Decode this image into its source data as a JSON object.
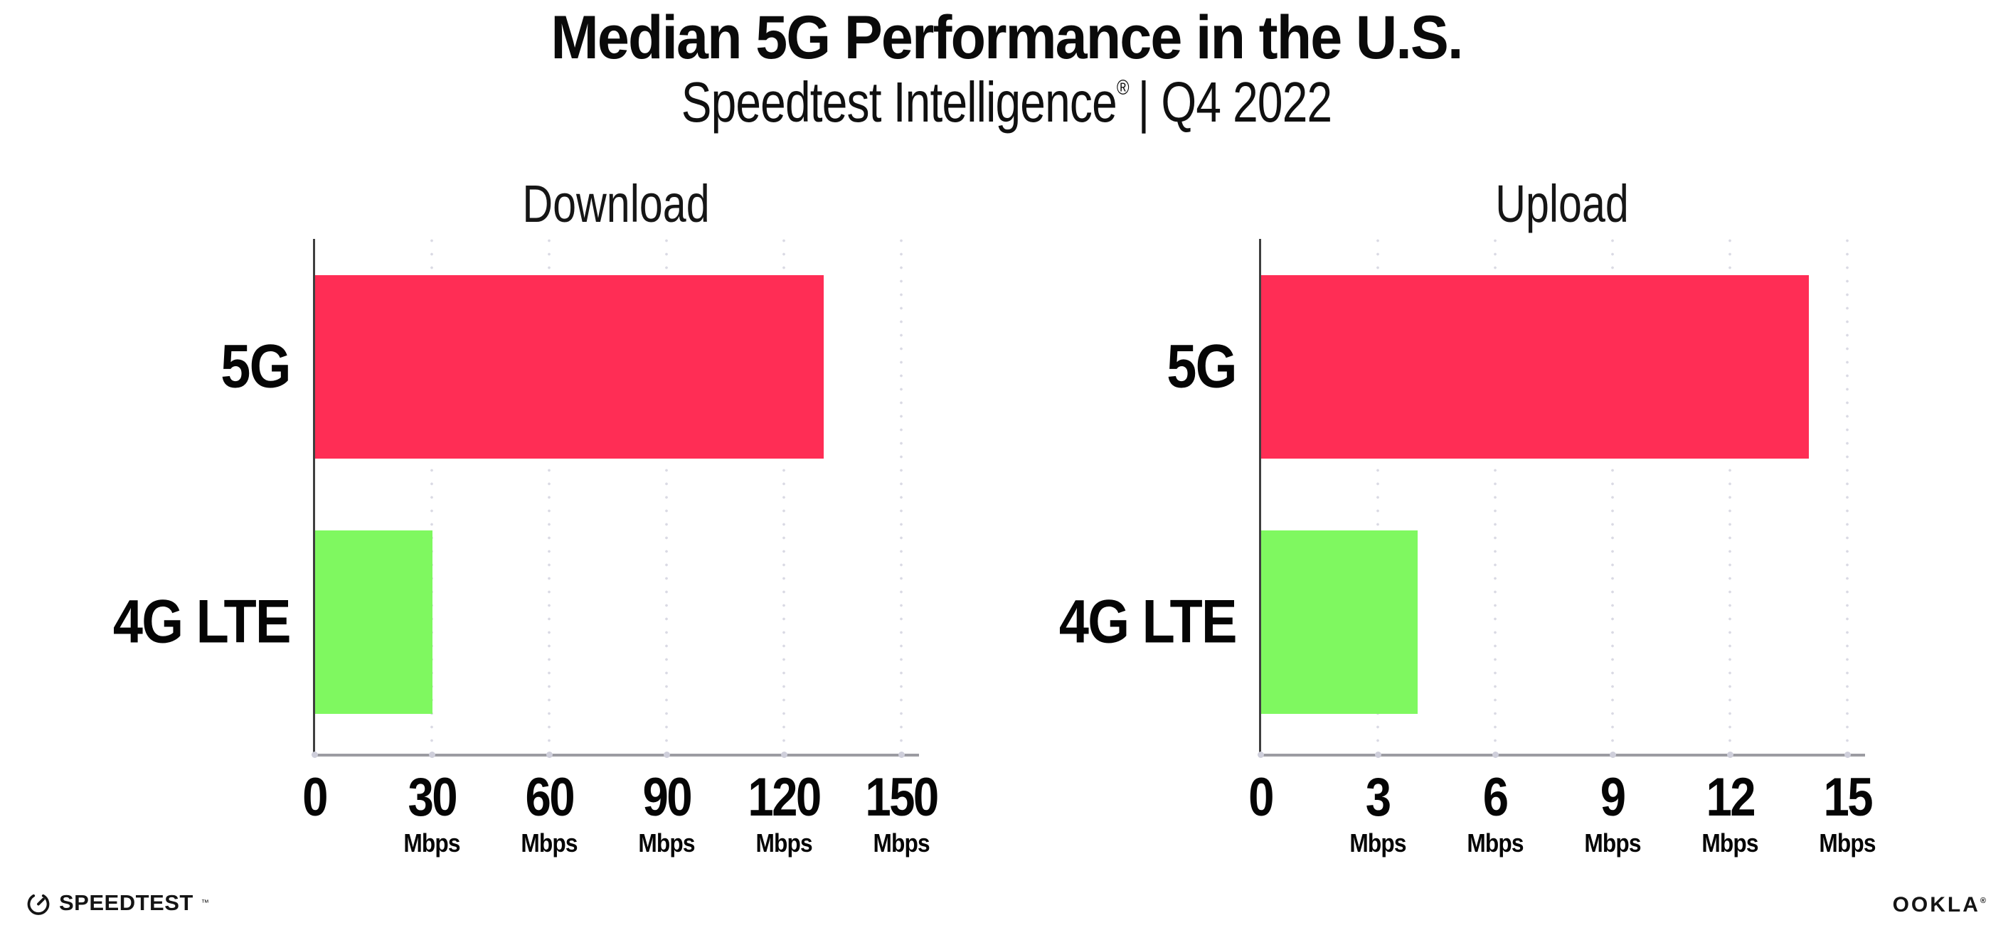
{
  "header": {
    "title": "Median 5G Performance in the U.S.",
    "subtitle_brand": "Speedtest Intelligence",
    "subtitle_reg": "®",
    "subtitle_rest": "| Q4 2022"
  },
  "colors": {
    "bar_5g": "#FF2D55",
    "bar_4g_lte": "#7FF860",
    "gridline": "#DADAE4",
    "x_axis_line": "#9C9CA2",
    "y_axis_line": "#3F3F3F",
    "text": "#0B0B0B"
  },
  "chart_data": [
    {
      "type": "bar",
      "orientation": "horizontal",
      "title": "Download",
      "categories": [
        "5G",
        "4G LTE"
      ],
      "values": [
        130,
        30
      ],
      "unit": "Mbps",
      "xlim": [
        0,
        150
      ],
      "ticks": [
        0,
        30,
        60,
        90,
        120,
        150
      ],
      "tick_unit": "Mbps",
      "bar_colors": [
        "#FF2D55",
        "#7FF860"
      ],
      "grid": "vertical-dotted",
      "legend": "none"
    },
    {
      "type": "bar",
      "orientation": "horizontal",
      "title": "Upload",
      "categories": [
        "5G",
        "4G LTE"
      ],
      "values": [
        14,
        4
      ],
      "unit": "Mbps",
      "xlim": [
        0,
        15
      ],
      "ticks": [
        0,
        3,
        6,
        9,
        12,
        15
      ],
      "tick_unit": "Mbps",
      "bar_colors": [
        "#FF2D55",
        "#7FF860"
      ],
      "grid": "vertical-dotted",
      "legend": "none"
    }
  ],
  "footer": {
    "speedtest_label": "SPEEDTEST",
    "speedtest_mark": "™",
    "speedtest_icon": "speedometer-gauge-icon",
    "ookla_label": "OOKLA",
    "ookla_mark": "®"
  }
}
